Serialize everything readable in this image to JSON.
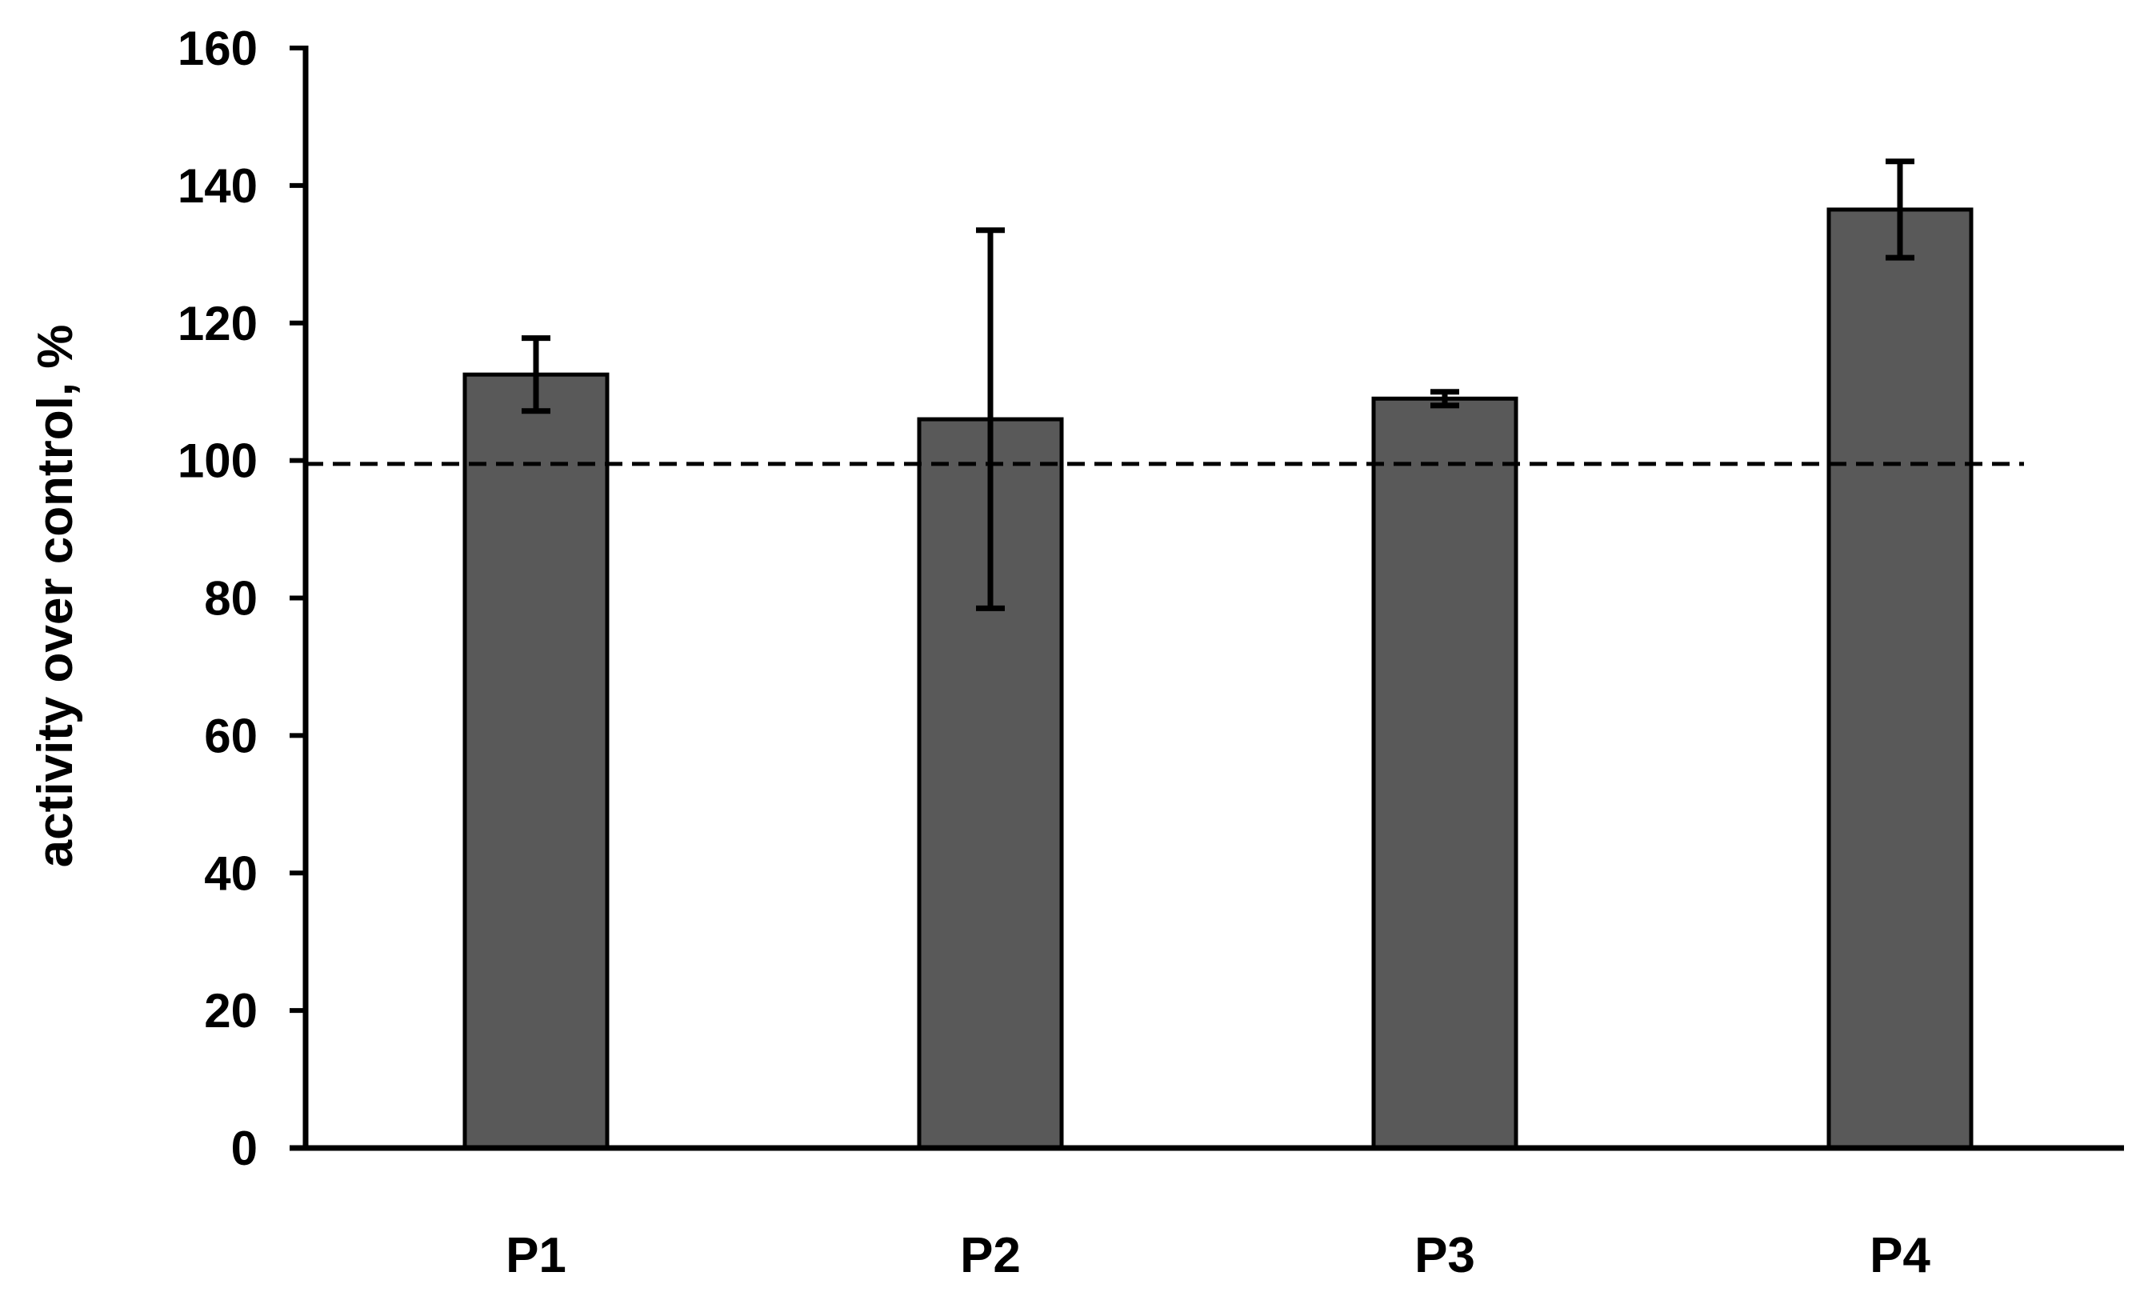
{
  "chart_data": {
    "type": "bar",
    "categories": [
      "P1",
      "P2",
      "P3",
      "P4"
    ],
    "values": [
      112.5,
      106,
      109,
      136.5
    ],
    "errors": [
      5.3,
      27.5,
      1,
      7
    ],
    "title": "",
    "xlabel": "",
    "ylabel": "activity over control, %",
    "ylim": [
      0,
      160
    ],
    "yticks": [
      0,
      20,
      40,
      60,
      80,
      100,
      120,
      140,
      160
    ],
    "reference_line": {
      "value": 99.5,
      "style": "dashed"
    },
    "grid": false,
    "legend": "none",
    "colors": {
      "bar_fill": "#595959",
      "bar_stroke": "#000000",
      "error_bar": "#000000",
      "axis": "#000000",
      "reference_line": "#000000"
    }
  }
}
